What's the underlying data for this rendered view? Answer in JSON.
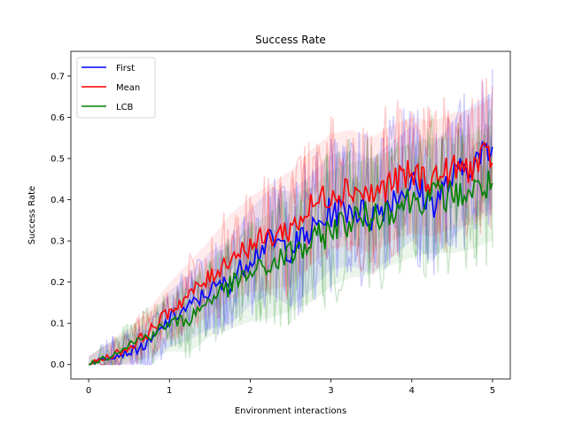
{
  "chart_data": {
    "type": "line",
    "title": "Success Rate",
    "xlabel": "Environment interactions",
    "ylabel": "Success Rate",
    "xlim": [
      -0.22,
      5.22
    ],
    "ylim": [
      -0.035,
      0.76
    ],
    "x_ticks": [
      0,
      1,
      2,
      3,
      4,
      5
    ],
    "x_tick_labels": [
      "0",
      "1",
      "2",
      "3",
      "4",
      "5"
    ],
    "y_ticks": [
      0.0,
      0.1,
      0.2,
      0.3,
      0.4,
      0.5,
      0.6,
      0.7
    ],
    "y_tick_labels": [
      "0.0",
      "0.1",
      "0.2",
      "0.3",
      "0.4",
      "0.5",
      "0.6",
      "0.7"
    ],
    "grid": false,
    "legend_position": "top-left",
    "series": [
      {
        "name": "First",
        "color": "#0000ff",
        "x": [
          0,
          0.25,
          0.5,
          0.75,
          1.0,
          1.25,
          1.5,
          1.75,
          2.0,
          2.25,
          2.5,
          2.75,
          3.0,
          3.25,
          3.5,
          3.75,
          4.0,
          4.25,
          4.5,
          4.75,
          5.0
        ],
        "y": [
          0.0,
          0.02,
          0.03,
          0.05,
          0.11,
          0.14,
          0.18,
          0.2,
          0.26,
          0.3,
          0.28,
          0.32,
          0.37,
          0.38,
          0.36,
          0.4,
          0.44,
          0.39,
          0.45,
          0.49,
          0.52
        ]
      },
      {
        "name": "Mean",
        "color": "#ff0000",
        "x": [
          0,
          0.25,
          0.5,
          0.75,
          1.0,
          1.25,
          1.5,
          1.75,
          2.0,
          2.25,
          2.5,
          2.75,
          3.0,
          3.25,
          3.5,
          3.75,
          4.0,
          4.25,
          4.5,
          4.75,
          5.0
        ],
        "y": [
          0.0,
          0.02,
          0.04,
          0.08,
          0.13,
          0.17,
          0.21,
          0.26,
          0.29,
          0.31,
          0.33,
          0.38,
          0.42,
          0.43,
          0.41,
          0.44,
          0.46,
          0.45,
          0.47,
          0.48,
          0.51
        ]
      },
      {
        "name": "LCB",
        "color": "#008000",
        "x": [
          0,
          0.25,
          0.5,
          0.75,
          1.0,
          1.25,
          1.5,
          1.75,
          2.0,
          2.25,
          2.5,
          2.75,
          3.0,
          3.25,
          3.5,
          3.75,
          4.0,
          4.25,
          4.5,
          4.75,
          5.0
        ],
        "y": [
          0.0,
          0.02,
          0.05,
          0.07,
          0.1,
          0.11,
          0.16,
          0.19,
          0.22,
          0.24,
          0.27,
          0.29,
          0.33,
          0.35,
          0.36,
          0.38,
          0.4,
          0.41,
          0.41,
          0.42,
          0.44
        ]
      }
    ]
  }
}
